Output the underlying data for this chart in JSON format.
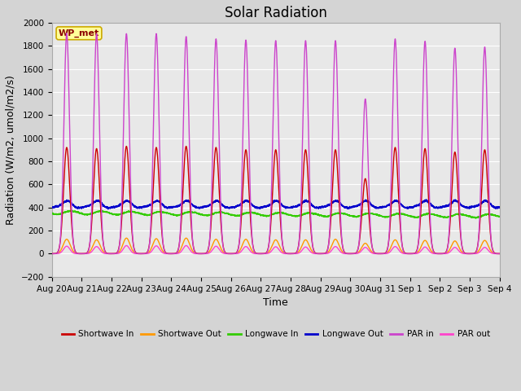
{
  "title": "Solar Radiation",
  "ylabel": "Radiation (W/m2, umol/m2/s)",
  "xlabel": "Time",
  "ylim": [
    -200,
    2000
  ],
  "yticks": [
    -200,
    0,
    200,
    400,
    600,
    800,
    1000,
    1200,
    1400,
    1600,
    1800,
    2000
  ],
  "station_label": "WP_met",
  "num_days": 15,
  "colors": {
    "shortwave_in": "#cc0000",
    "shortwave_out": "#ff9900",
    "longwave_in": "#33cc00",
    "longwave_out": "#0000cc",
    "par_in": "#cc44cc",
    "par_out": "#ff44cc"
  },
  "legend_entries": [
    {
      "label": "Shortwave In",
      "color": "#cc0000"
    },
    {
      "label": "Shortwave Out",
      "color": "#ff9900"
    },
    {
      "label": "Longwave In",
      "color": "#33cc00"
    },
    {
      "label": "Longwave Out",
      "color": "#0000cc"
    },
    {
      "label": "PAR in",
      "color": "#cc44cc"
    },
    {
      "label": "PAR out",
      "color": "#ff44cc"
    }
  ],
  "background_color": "#d4d4d4",
  "plot_bg_color": "#e8e8e8",
  "title_fontsize": 12,
  "axis_label_fontsize": 9,
  "tick_fontsize": 7.5,
  "day_labels": [
    "Aug 20",
    "Aug 21",
    "Aug 22",
    "Aug 23",
    "Aug 24",
    "Aug 25",
    "Aug 26",
    "Aug 27",
    "Aug 28",
    "Aug 29",
    "Aug 30",
    "Aug 31",
    "Sep 1",
    "Sep 2",
    "Sep 3",
    "Sep 4"
  ]
}
